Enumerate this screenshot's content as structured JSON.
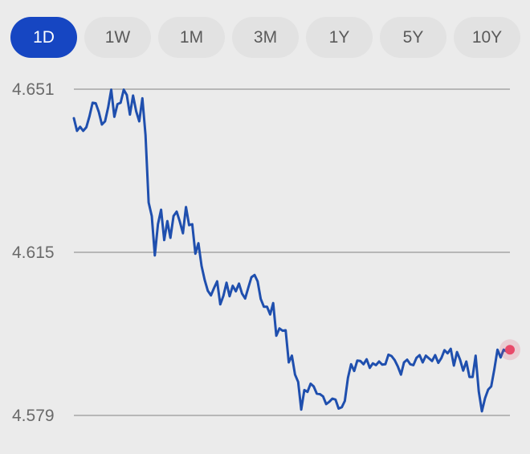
{
  "range_tabs": [
    {
      "label": "1D",
      "active": true
    },
    {
      "label": "1W",
      "active": false
    },
    {
      "label": "1M",
      "active": false
    },
    {
      "label": "3M",
      "active": false
    },
    {
      "label": "1Y",
      "active": false
    },
    {
      "label": "5Y",
      "active": false
    },
    {
      "label": "10Y",
      "active": false
    }
  ],
  "colors": {
    "accent": "#1646c2",
    "line": "#1f4fae",
    "last_point": "#e84a6a",
    "grid": "#b7b7b7",
    "background": "#ebebeb"
  },
  "chart_data": {
    "type": "line",
    "ylim": [
      4.579,
      4.651
    ],
    "y_ticks": [
      "4.651",
      "4.615",
      "4.579"
    ],
    "grid": true,
    "last_point_marker": true,
    "series": [
      {
        "values": [
          4.6446,
          4.6418,
          4.6427,
          4.6418,
          4.6426,
          4.645,
          4.648,
          4.6479,
          4.646,
          4.6432,
          4.6439,
          4.647,
          4.6509,
          4.6449,
          4.6477,
          4.648,
          4.6509,
          4.6497,
          4.6454,
          4.6496,
          4.6461,
          4.6439,
          4.649,
          4.6409,
          4.626,
          4.623,
          4.6143,
          4.6212,
          4.6244,
          4.6177,
          4.6219,
          4.6182,
          4.623,
          4.624,
          4.6218,
          4.6192,
          4.625,
          4.621,
          4.6212,
          4.6147,
          4.617,
          4.612,
          4.6089,
          4.6065,
          4.6055,
          4.6071,
          4.6086,
          4.6035,
          4.6054,
          4.6083,
          4.6053,
          4.6076,
          4.6064,
          4.6081,
          4.6059,
          4.6048,
          4.6072,
          4.6095,
          4.61,
          4.6086,
          4.6047,
          4.603,
          4.603,
          4.6013,
          4.6038,
          4.5966,
          4.5982,
          4.5977,
          4.5978,
          4.5907,
          4.5922,
          4.588,
          4.5864,
          4.5803,
          4.5846,
          4.5842,
          4.586,
          4.5854,
          4.5838,
          4.5837,
          4.5832,
          4.5815,
          4.582,
          4.5827,
          4.5825,
          4.5805,
          4.5808,
          4.5822,
          4.5873,
          4.5903,
          4.5888,
          4.5911,
          4.591,
          4.5903,
          4.5914,
          4.5895,
          4.5905,
          4.5901,
          4.5909,
          4.5902,
          4.5903,
          4.5924,
          4.5921,
          4.5912,
          4.5898,
          4.588,
          4.5907,
          4.5913,
          4.5903,
          4.5901,
          4.5917,
          4.5923,
          4.5907,
          4.5922,
          4.5916,
          4.591,
          4.5923,
          4.5906,
          4.5917,
          4.5934,
          4.5927,
          4.5937,
          4.59,
          4.593,
          4.5913,
          4.5889,
          4.5909,
          4.5875,
          4.5875,
          4.5922,
          4.5843,
          4.5799,
          4.5828,
          4.5847,
          4.5854,
          4.5892,
          4.5935,
          4.5918,
          4.5935,
          4.5931,
          4.5935
        ]
      }
    ]
  }
}
